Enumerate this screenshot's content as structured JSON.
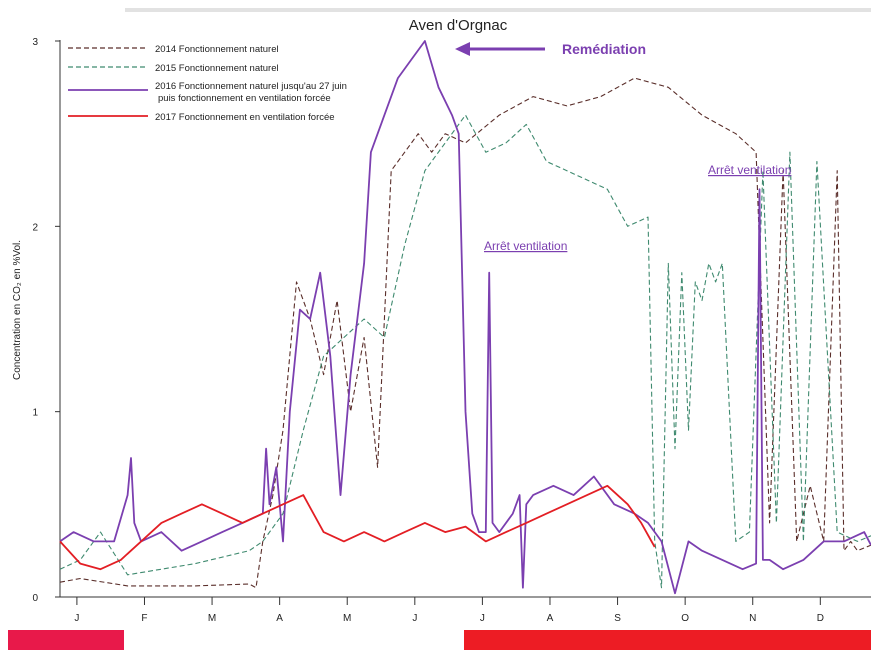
{
  "chart_data": {
    "type": "line",
    "title": "Aven d'Orgnac",
    "ylabel": "Concentration en CO₂ en %Vol.",
    "xlabel": "",
    "ylim": [
      0,
      3
    ],
    "yticks": [
      "0",
      "1",
      "2",
      "3"
    ],
    "xlim": [
      0,
      12
    ],
    "months": [
      "J",
      "F",
      "M",
      "A",
      "M",
      "J",
      "J",
      "A",
      "S",
      "O",
      "N",
      "D"
    ],
    "grid": false,
    "legend_position": "top-left",
    "annotations": [
      {
        "text": "Remédiation",
        "color": "#7b3fb0"
      },
      {
        "text": "Arrêt ventilation",
        "color": "#7b3fb0"
      },
      {
        "text": "Arrêt ventilation",
        "color": "#7b3fb0"
      }
    ],
    "series": [
      {
        "name": "2014 Fonctionnement naturel",
        "color": "#5a2e2a",
        "dash": "dashed",
        "x": [
          0,
          0.3,
          1,
          2,
          2.8,
          2.9,
          3.0,
          3.15,
          3.3,
          3.5,
          3.7,
          3.9,
          4.1,
          4.3,
          4.5,
          4.7,
          4.9,
          5.1,
          5.3,
          5.5,
          5.7,
          6.0,
          6.5,
          7.0,
          7.5,
          8.0,
          8.5,
          9.0,
          9.5,
          10.0,
          10.3,
          10.5,
          10.7,
          10.9,
          11.1,
          11.3,
          11.5,
          11.6,
          11.7,
          11.8,
          12.0
        ],
        "y": [
          0.08,
          0.1,
          0.06,
          0.06,
          0.07,
          0.05,
          0.3,
          0.55,
          0.9,
          1.7,
          1.5,
          1.2,
          1.6,
          1.0,
          1.4,
          0.7,
          2.3,
          2.4,
          2.5,
          2.4,
          2.5,
          2.45,
          2.6,
          2.7,
          2.65,
          2.7,
          2.8,
          2.75,
          2.6,
          2.5,
          2.4,
          0.4,
          2.3,
          0.3,
          0.6,
          0.3,
          2.3,
          0.25,
          0.3,
          0.25,
          0.28
        ]
      },
      {
        "name": "2015 Fonctionnement naturel",
        "color": "#3f8a6f",
        "dash": "dashed",
        "x": [
          0,
          0.3,
          0.6,
          1,
          2,
          2.8,
          3.0,
          3.3,
          3.6,
          3.9,
          4.2,
          4.5,
          4.8,
          5.1,
          5.4,
          5.7,
          6.0,
          6.3,
          6.6,
          6.9,
          7.2,
          7.5,
          7.8,
          8.1,
          8.4,
          8.7,
          8.8,
          8.9,
          9.0,
          9.1,
          9.2,
          9.3,
          9.4,
          9.5,
          9.6,
          9.7,
          9.8,
          10.0,
          10.2,
          10.4,
          10.6,
          10.8,
          11.0,
          11.2,
          11.5,
          11.8,
          12.0
        ],
        "y": [
          0.15,
          0.2,
          0.35,
          0.12,
          0.18,
          0.25,
          0.3,
          0.45,
          0.9,
          1.3,
          1.4,
          1.5,
          1.4,
          1.9,
          2.3,
          2.45,
          2.6,
          2.4,
          2.45,
          2.55,
          2.35,
          2.3,
          2.25,
          2.2,
          2.0,
          2.05,
          0.3,
          0.05,
          1.8,
          0.8,
          1.75,
          0.9,
          1.7,
          1.6,
          1.8,
          1.7,
          1.8,
          0.3,
          0.35,
          2.3,
          0.4,
          2.4,
          0.3,
          2.35,
          0.35,
          0.3,
          0.33
        ]
      },
      {
        "name": "2016 Fonctionnement naturel jusqu'au 27 juin puis fonctionnement en ventilation forcée",
        "label_lines": [
          "2016 Fonctionnement naturel jusqu'au 27 juin",
          "puis fonctionnement en ventilation forcée"
        ],
        "color": "#7b3fb0",
        "dash": "solid",
        "x": [
          0,
          0.2,
          0.5,
          0.8,
          1.0,
          1.05,
          1.1,
          1.2,
          1.5,
          1.8,
          2.1,
          2.4,
          2.7,
          3.0,
          3.05,
          3.1,
          3.2,
          3.3,
          3.4,
          3.55,
          3.7,
          3.85,
          4.0,
          4.15,
          4.3,
          4.5,
          4.6,
          4.8,
          5.0,
          5.2,
          5.4,
          5.6,
          5.8,
          5.9,
          6.0,
          6.1,
          6.2,
          6.3,
          6.35,
          6.4,
          6.5,
          6.7,
          6.8,
          6.85,
          6.9,
          7.0,
          7.3,
          7.6,
          7.9,
          8.2,
          8.5,
          8.7,
          8.9,
          9.1,
          9.3,
          9.5,
          9.8,
          10.1,
          10.3,
          10.35,
          10.4,
          10.5,
          10.7,
          11.0,
          11.3,
          11.6,
          11.9,
          12.0
        ],
        "y": [
          0.3,
          0.35,
          0.3,
          0.3,
          0.55,
          0.75,
          0.4,
          0.3,
          0.35,
          0.25,
          0.3,
          0.35,
          0.4,
          0.45,
          0.8,
          0.5,
          0.7,
          0.3,
          1.0,
          1.55,
          1.5,
          1.75,
          1.3,
          0.55,
          1.2,
          1.8,
          2.4,
          2.6,
          2.8,
          2.9,
          3.0,
          2.75,
          2.6,
          2.5,
          1.0,
          0.45,
          0.35,
          0.35,
          1.75,
          0.4,
          0.35,
          0.45,
          0.55,
          0.05,
          0.5,
          0.55,
          0.6,
          0.55,
          0.65,
          0.5,
          0.45,
          0.4,
          0.3,
          0.02,
          0.3,
          0.25,
          0.2,
          0.15,
          0.18,
          2.2,
          0.2,
          0.2,
          0.15,
          0.2,
          0.3,
          0.3,
          0.35,
          0.28
        ]
      },
      {
        "name": "2017 Fonctionnement en ventilation forcée",
        "color": "#e31e24",
        "dash": "solid",
        "x": [
          0,
          0.3,
          0.6,
          0.9,
          1.2,
          1.5,
          1.8,
          2.1,
          2.4,
          2.7,
          3.0,
          3.3,
          3.6,
          3.9,
          4.2,
          4.5,
          4.8,
          5.1,
          5.4,
          5.7,
          6.0,
          6.3,
          6.6,
          6.9,
          7.2,
          7.5,
          7.8,
          8.1,
          8.4,
          8.6,
          8.8
        ],
        "y": [
          0.3,
          0.18,
          0.15,
          0.2,
          0.3,
          0.4,
          0.45,
          0.5,
          0.45,
          0.4,
          0.45,
          0.5,
          0.55,
          0.35,
          0.3,
          0.35,
          0.3,
          0.35,
          0.4,
          0.35,
          0.38,
          0.3,
          0.35,
          0.4,
          0.45,
          0.5,
          0.55,
          0.6,
          0.5,
          0.4,
          0.27
        ]
      }
    ]
  }
}
